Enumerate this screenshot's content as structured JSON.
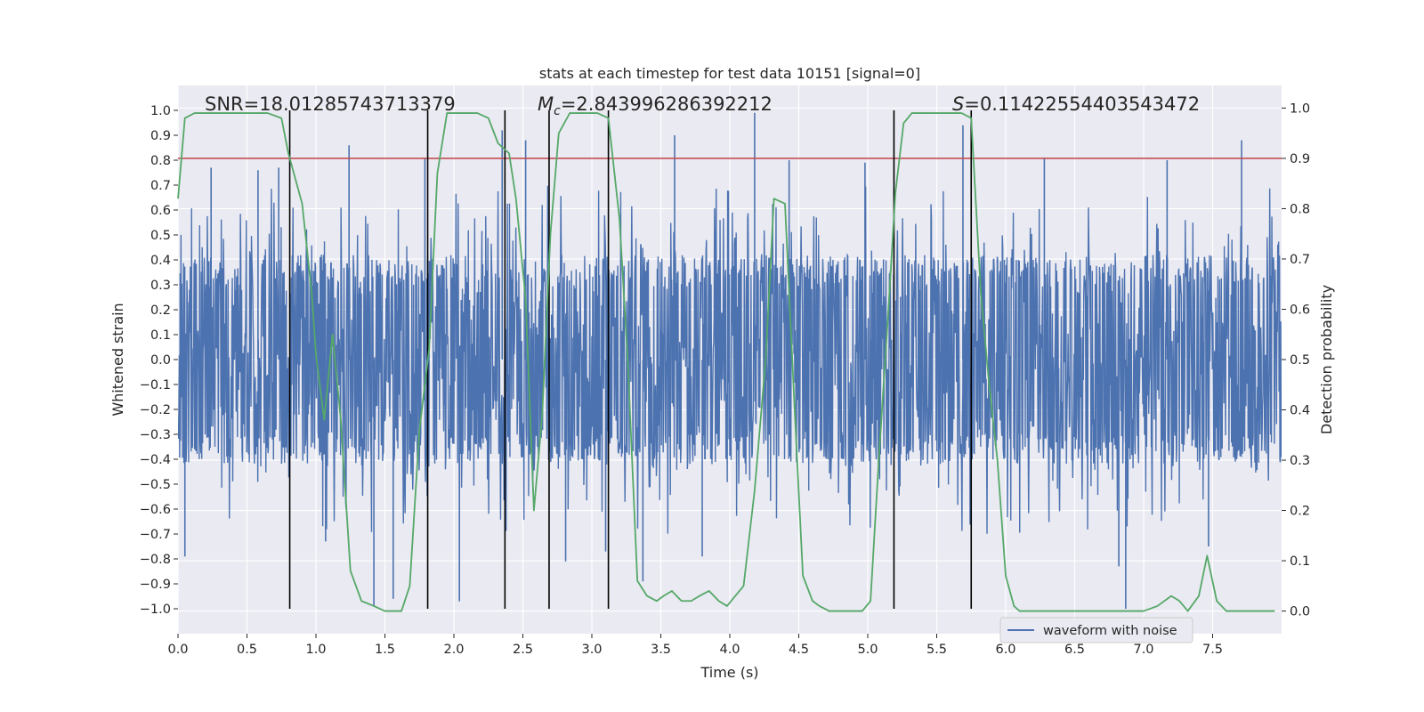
{
  "chart_data": {
    "type": "line",
    "title": "stats at each timestep for test data 10151 [signal=0]",
    "xlabel": "Time (s)",
    "ylabel": "Whitened strain",
    "y2label": "Detection probability",
    "xlim": [
      0.0,
      8.0
    ],
    "ylim": [
      -1.1,
      1.1
    ],
    "y2lim": [
      -0.045,
      1.045
    ],
    "x_ticks": [
      0.0,
      0.5,
      1.0,
      1.5,
      2.0,
      2.5,
      3.0,
      3.5,
      4.0,
      4.5,
      5.0,
      5.5,
      6.0,
      6.5,
      7.0,
      7.5
    ],
    "x_tick_labels": [
      "0.0",
      "0.5",
      "1.0",
      "1.5",
      "2.0",
      "2.5",
      "3.0",
      "3.5",
      "4.0",
      "4.5",
      "5.0",
      "5.5",
      "6.0",
      "6.5",
      "7.0",
      "7.5"
    ],
    "y_ticks": [
      1.0,
      0.9,
      0.8,
      0.7,
      0.6,
      0.5,
      0.4,
      0.3,
      0.2,
      0.1,
      0.0,
      -0.1,
      -0.2,
      -0.3,
      -0.4,
      -0.5,
      -0.6,
      -0.7,
      -0.8,
      -0.9,
      -1.0
    ],
    "y_tick_labels": [
      "1.0",
      "0.9",
      "0.8",
      "0.7",
      "0.6",
      "0.5",
      "0.4",
      "0.3",
      "0.2",
      "0.1",
      "0.0",
      "−0.1",
      "−0.2",
      "−0.3",
      "−0.4",
      "−0.5",
      "−0.6",
      "−0.7",
      "−0.8",
      "−0.9",
      "−1.0"
    ],
    "y2_ticks": [
      1.0,
      0.9,
      0.8,
      0.7,
      0.6,
      0.5,
      0.4,
      0.3,
      0.2,
      0.1,
      0.0
    ],
    "y2_tick_labels": [
      "1.0",
      "0.9",
      "0.8",
      "0.7",
      "0.6",
      "0.5",
      "0.4",
      "0.3",
      "0.2",
      "0.1",
      "0.0"
    ],
    "annotations": {
      "snr": "SNR=18.01285743713379",
      "mc_symbol": "M",
      "mc_sub": "c",
      "mc_value": "=2.843996286392212",
      "s_symbol": "S",
      "s_value": "=0.11422554403543472"
    },
    "threshold": {
      "value": 0.9,
      "axis": "y2",
      "color": "#c44e52"
    },
    "vertical_lines": {
      "x": [
        0.81,
        1.81,
        2.37,
        2.69,
        3.12,
        5.19,
        5.75
      ],
      "y_range": [
        -1.0,
        1.0
      ],
      "color": "#000000"
    },
    "series": [
      {
        "name": "waveform with noise",
        "axis": "y",
        "color": "#4c72b0",
        "note": "dense noise waveform, ~8 s; bulk amplitude about ±0.4, spikes up to about ±1.0",
        "spikes": [
          {
            "t": 0.05,
            "v": -0.79
          },
          {
            "t": 0.24,
            "v": 0.77
          },
          {
            "t": 0.58,
            "v": 0.76
          },
          {
            "t": 0.73,
            "v": 0.77
          },
          {
            "t": 1.07,
            "v": -0.73
          },
          {
            "t": 1.24,
            "v": 0.86
          },
          {
            "t": 1.42,
            "v": -0.99
          },
          {
            "t": 1.56,
            "v": -0.96
          },
          {
            "t": 1.79,
            "v": 0.81
          },
          {
            "t": 2.04,
            "v": -0.97
          },
          {
            "t": 2.35,
            "v": 0.92
          },
          {
            "t": 2.52,
            "v": 0.88
          },
          {
            "t": 2.81,
            "v": -0.81
          },
          {
            "t": 3.1,
            "v": -0.77
          },
          {
            "t": 3.37,
            "v": -0.89
          },
          {
            "t": 3.6,
            "v": 0.9
          },
          {
            "t": 3.8,
            "v": -0.79
          },
          {
            "t": 4.18,
            "v": 0.99
          },
          {
            "t": 4.43,
            "v": 0.8
          },
          {
            "t": 4.98,
            "v": 0.79
          },
          {
            "t": 5.69,
            "v": 0.94
          },
          {
            "t": 6.28,
            "v": 0.81
          },
          {
            "t": 6.82,
            "v": -0.83
          },
          {
            "t": 6.87,
            "v": -1.0
          },
          {
            "t": 7.17,
            "v": 0.8
          },
          {
            "t": 7.47,
            "v": -0.75
          },
          {
            "t": 7.71,
            "v": 0.88
          }
        ]
      },
      {
        "name": "detection probability",
        "axis": "y2",
        "color": "#55a868",
        "x": [
          0.0,
          0.05,
          0.12,
          0.2,
          0.3,
          0.4,
          0.5,
          0.58,
          0.65,
          0.75,
          0.8,
          0.9,
          0.97,
          1.0,
          1.06,
          1.12,
          1.18,
          1.25,
          1.33,
          1.42,
          1.5,
          1.56,
          1.62,
          1.68,
          1.75,
          1.82,
          1.88,
          1.95,
          2.05,
          2.1,
          2.17,
          2.25,
          2.32,
          2.4,
          2.45,
          2.52,
          2.58,
          2.64,
          2.7,
          2.76,
          2.84,
          2.9,
          2.96,
          3.04,
          3.12,
          3.2,
          3.26,
          3.33,
          3.4,
          3.47,
          3.52,
          3.58,
          3.65,
          3.72,
          3.78,
          3.85,
          3.92,
          3.98,
          4.04,
          4.1,
          4.18,
          4.26,
          4.32,
          4.4,
          4.47,
          4.53,
          4.6,
          4.65,
          4.72,
          4.8,
          4.9,
          4.96,
          5.02,
          5.08,
          5.15,
          5.2,
          5.26,
          5.32,
          5.4,
          5.48,
          5.56,
          5.62,
          5.68,
          5.75,
          5.82,
          5.88,
          5.94,
          6.0,
          6.06,
          6.1,
          6.2,
          6.3,
          6.4,
          6.5,
          6.6,
          6.7,
          6.8,
          6.9,
          7.0,
          7.1,
          7.2,
          7.26,
          7.32,
          7.4,
          7.46,
          7.53,
          7.6,
          7.67,
          7.75,
          7.85,
          7.95
        ],
        "y": [
          0.82,
          0.98,
          0.99,
          0.99,
          0.99,
          0.99,
          0.99,
          0.99,
          0.99,
          0.98,
          0.91,
          0.81,
          0.63,
          0.51,
          0.38,
          0.55,
          0.38,
          0.08,
          0.02,
          0.01,
          0.0,
          0.0,
          0.0,
          0.05,
          0.36,
          0.52,
          0.87,
          0.99,
          0.99,
          0.99,
          0.99,
          0.98,
          0.93,
          0.91,
          0.82,
          0.62,
          0.2,
          0.39,
          0.75,
          0.95,
          0.99,
          0.99,
          0.99,
          0.99,
          0.98,
          0.78,
          0.5,
          0.06,
          0.03,
          0.02,
          0.03,
          0.04,
          0.02,
          0.02,
          0.03,
          0.04,
          0.02,
          0.01,
          0.03,
          0.05,
          0.24,
          0.5,
          0.82,
          0.81,
          0.4,
          0.07,
          0.02,
          0.01,
          0.0,
          0.0,
          0.0,
          0.0,
          0.02,
          0.3,
          0.6,
          0.83,
          0.97,
          0.99,
          0.99,
          0.99,
          0.99,
          0.99,
          0.99,
          0.98,
          0.63,
          0.45,
          0.3,
          0.07,
          0.01,
          0.0,
          0.0,
          0.0,
          0.0,
          0.0,
          0.0,
          0.0,
          0.0,
          0.0,
          0.0,
          0.01,
          0.03,
          0.02,
          0.0,
          0.03,
          0.11,
          0.02,
          0.0,
          0.0,
          0.0,
          0.0,
          0.0
        ]
      }
    ],
    "legend": {
      "entries": [
        "waveform with noise"
      ],
      "placement": "lower right"
    },
    "grid": true
  }
}
